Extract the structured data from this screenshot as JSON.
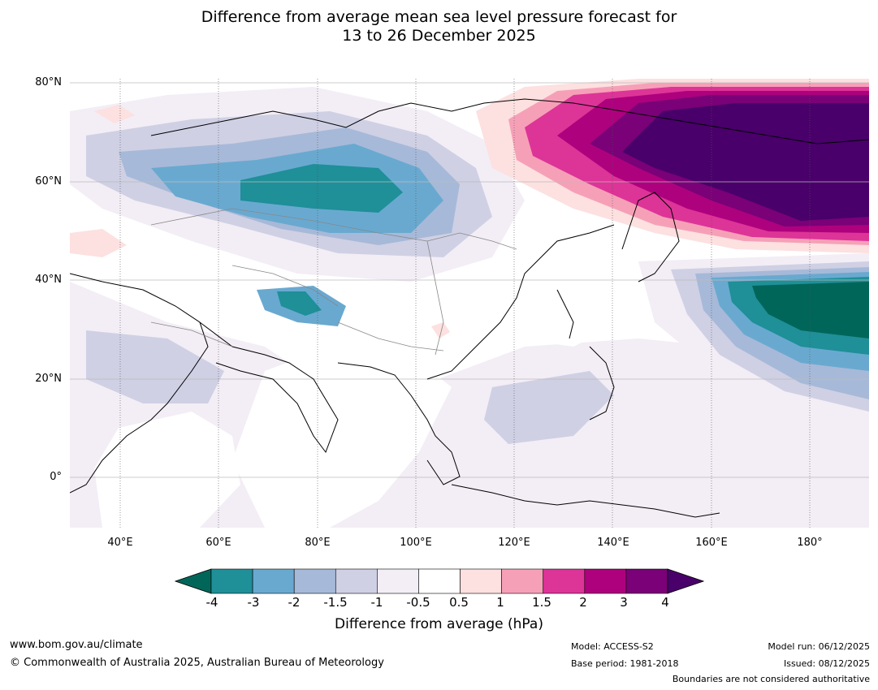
{
  "title": {
    "line1": "Difference from average mean sea level pressure forecast for",
    "line2": "13 to 26 December 2025"
  },
  "axes": {
    "lat_labels": [
      "80°N",
      "60°N",
      "40°N",
      "20°N",
      "0°"
    ],
    "lon_labels": [
      "40°E",
      "60°E",
      "80°E",
      "100°E",
      "120°E",
      "140°E",
      "160°E",
      "180°"
    ]
  },
  "colorbar": {
    "title": "Difference from average (hPa)",
    "tick_labels": [
      "-4",
      "-3",
      "-2",
      "-1.5",
      "-1",
      "-0.5",
      "0.5",
      "1",
      "1.5",
      "2",
      "3",
      "4"
    ],
    "colors": [
      "#00665a",
      "#1f8f98",
      "#69a9d0",
      "#a7b9d8",
      "#cfd0e4",
      "#f3edf5",
      "#ffffff",
      "#fde0e0",
      "#f6a0b8",
      "#dd3497",
      "#ae017e",
      "#7a0177",
      "#49006a"
    ]
  },
  "footer": {
    "url": "www.bom.gov.au/climate",
    "copyright": "© Commonwealth of Australia 2025, Australian Bureau of Meteorology",
    "model": "Model: ACCESS-S2",
    "base_period": "Base period: 1981-2018",
    "model_run": "Model run: 06/12/2025",
    "issued": "Issued: 08/12/2025",
    "disclaimer": "Boundaries are not considered authoritative"
  }
}
